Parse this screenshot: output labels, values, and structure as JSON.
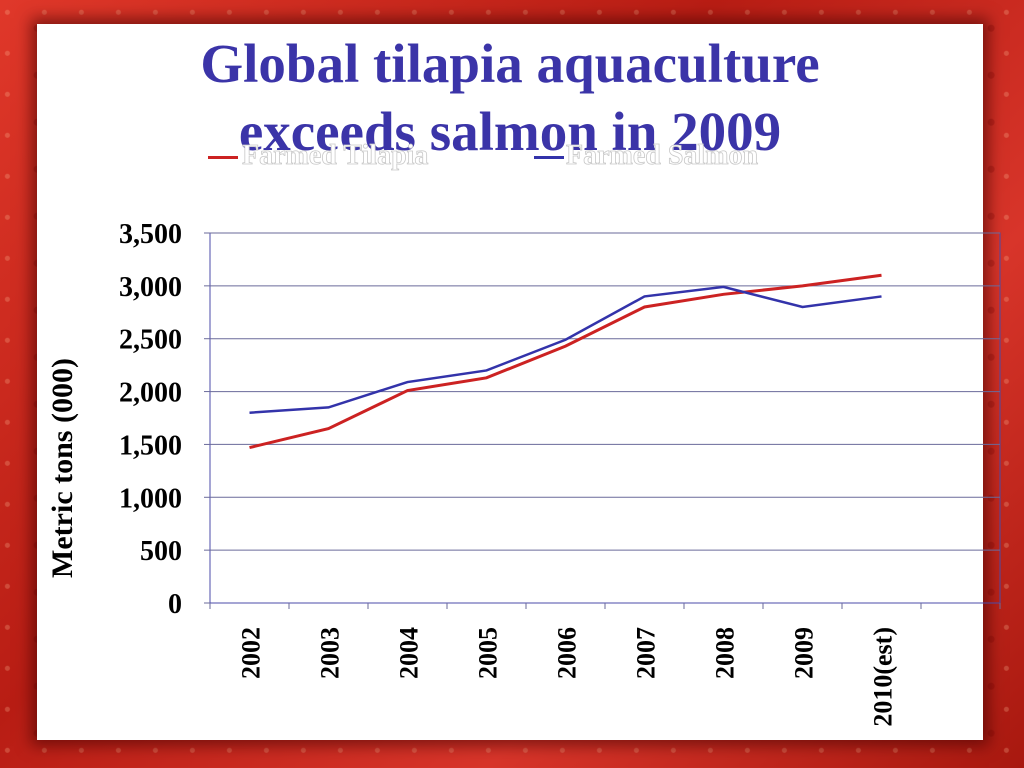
{
  "title_line1": "Global tilapia aquaculture",
  "title_line2": "exceeds salmon in 2009",
  "colors": {
    "tilapia": "#cc2222",
    "salmon": "#3333aa",
    "title": "#3b34a8"
  },
  "chart_data": {
    "type": "line",
    "title": "Global tilapia aquaculture exceeds salmon in 2009",
    "ylabel": "Metric tons (000)",
    "xlabel": "",
    "categories": [
      "2002",
      "2003",
      "2004",
      "2005",
      "2006",
      "2007",
      "2008",
      "2009",
      "2010(est)"
    ],
    "ylim": [
      0,
      3500
    ],
    "yticks": [
      "0",
      "500",
      "1,000",
      "1,500",
      "2,000",
      "2,500",
      "3,000",
      "3,500"
    ],
    "ytick_values": [
      0,
      500,
      1000,
      1500,
      2000,
      2500,
      3000,
      3500
    ],
    "grid": true,
    "legend": "top",
    "series": [
      {
        "name": "Farmed Tilapia",
        "color": "#cc2222",
        "values": [
          1470,
          1650,
          2010,
          2130,
          2430,
          2800,
          2920,
          3000,
          3100
        ]
      },
      {
        "name": "Farmed Salmon",
        "color": "#3333aa",
        "values": [
          1800,
          1850,
          2090,
          2200,
          2490,
          2900,
          2990,
          2800,
          2900
        ]
      }
    ]
  }
}
